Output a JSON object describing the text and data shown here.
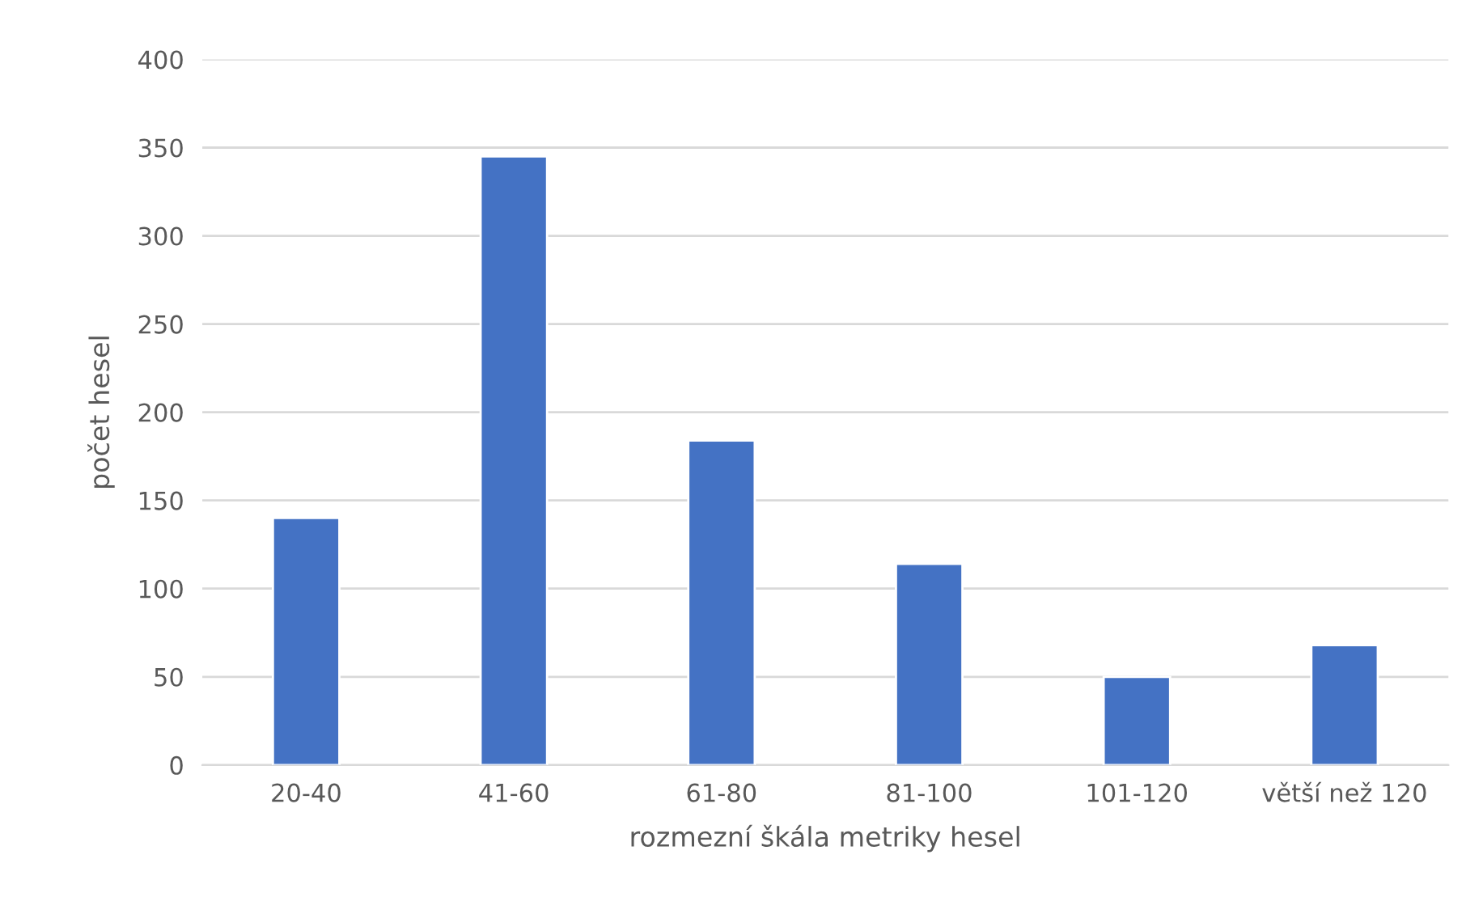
{
  "chart_data": {
    "type": "bar",
    "xlabel": "rozmezní škála metriky hesel",
    "ylabel": "počet hesel",
    "categories": [
      "20-40",
      "41-60",
      "61-80",
      "81-100",
      "101-120",
      "větší než 120"
    ],
    "values": [
      140,
      345,
      184,
      114,
      50,
      68
    ],
    "color": "#4472c4",
    "ylim": [
      0,
      400
    ],
    "yticks": [
      0,
      50,
      100,
      150,
      200,
      250,
      300,
      350,
      400
    ],
    "grid": "y"
  }
}
